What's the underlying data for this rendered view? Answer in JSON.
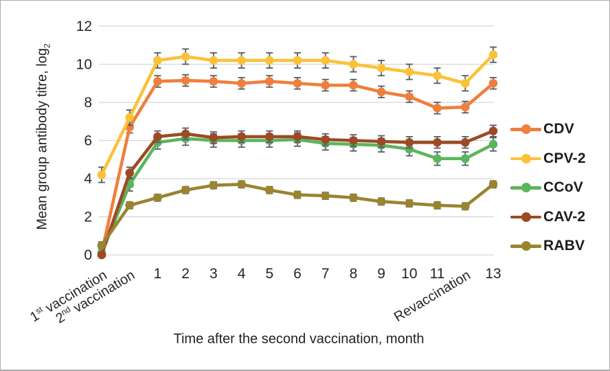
{
  "chart_data": {
    "type": "line",
    "title": "",
    "xlabel": "Time after the second vaccination, month",
    "ylabel": {
      "text": "Mean group antibody titre, log",
      "sub": "2"
    },
    "ylim": [
      0,
      12
    ],
    "yticks": [
      0,
      2,
      4,
      6,
      8,
      10,
      12
    ],
    "grid": "horizontal",
    "legend_position": "right",
    "categories": [
      "1st vaccination",
      "2nd vaccination",
      "1",
      "2",
      "3",
      "4",
      "5",
      "6",
      "7",
      "8",
      "9",
      "10",
      "11",
      "Revaccination",
      "13"
    ],
    "series": [
      {
        "name": "CDV",
        "color": "#EF7F3C",
        "error": 0.3,
        "values": [
          0.1,
          6.7,
          9.1,
          9.15,
          9.1,
          9.0,
          9.1,
          9.0,
          8.9,
          8.9,
          8.55,
          8.3,
          7.7,
          7.75,
          9.0
        ]
      },
      {
        "name": "CPV-2",
        "color": "#FBC238",
        "error": 0.4,
        "values": [
          4.2,
          7.2,
          10.2,
          10.4,
          10.2,
          10.2,
          10.2,
          10.2,
          10.2,
          10.0,
          9.8,
          9.6,
          9.4,
          9.0,
          10.5
        ]
      },
      {
        "name": "CCoV",
        "color": "#5BB55C",
        "error": 0.35,
        "values": [
          0.1,
          3.7,
          5.9,
          6.1,
          6.0,
          6.0,
          6.0,
          6.05,
          5.85,
          5.8,
          5.75,
          5.55,
          5.05,
          5.05,
          5.8
        ]
      },
      {
        "name": "CAV-2",
        "color": "#9C4A24",
        "error": 0.3,
        "values": [
          0.0,
          4.3,
          6.2,
          6.35,
          6.15,
          6.2,
          6.2,
          6.2,
          6.05,
          6.0,
          5.95,
          5.9,
          5.9,
          5.9,
          6.5
        ]
      },
      {
        "name": "RABV",
        "color": "#9A8430",
        "error": 0.18,
        "values": [
          0.5,
          2.6,
          3.0,
          3.4,
          3.65,
          3.7,
          3.4,
          3.15,
          3.1,
          3.0,
          2.8,
          2.7,
          2.6,
          2.55,
          3.7
        ]
      }
    ],
    "style": {
      "gridline_color": "#d7d7d7",
      "errorbar_color": "#525c66",
      "background": "#ffffff"
    }
  }
}
